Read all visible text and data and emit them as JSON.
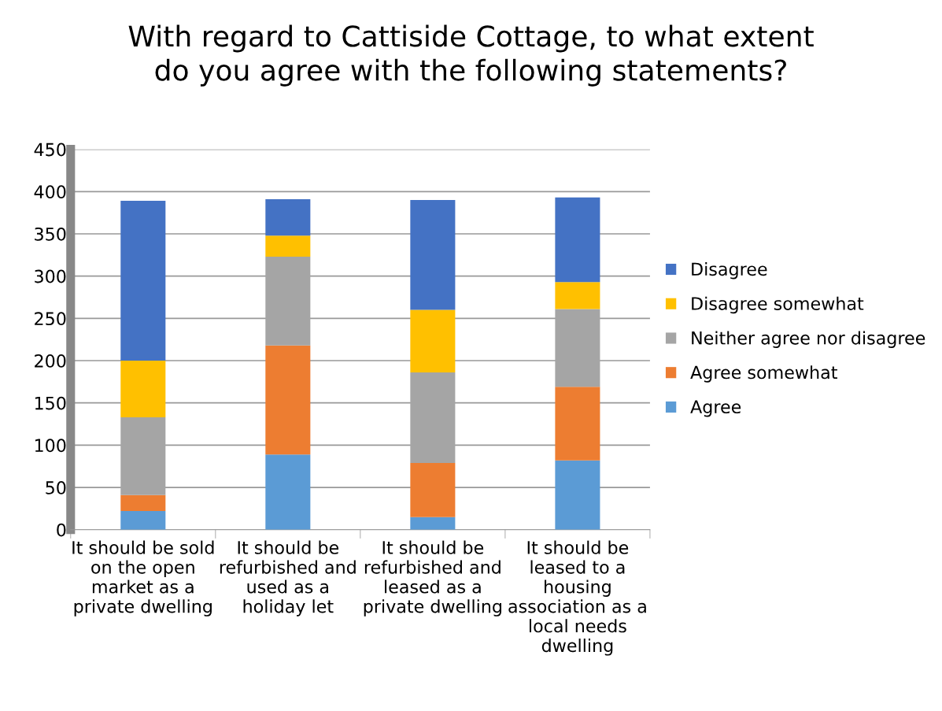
{
  "chart_data": {
    "type": "bar",
    "title": "With regard to Cattiside Cottage, to what extent\ndo you agree with the following statements?",
    "categories": [
      "It should be sold\non the open\nmarket as a\nprivate dwelling",
      "It should be\nrefurbished and\nused as a\nholiday let",
      "It should be\nrefurbished and\nleased as a\nprivate dwelling",
      "It should be\nleased to a\nhousing\nassociation as a\nlocal needs\ndwelling"
    ],
    "stacked": true,
    "series": [
      {
        "name": "Agree",
        "color": "#5b9bd5",
        "values": [
          22,
          89,
          15,
          82
        ]
      },
      {
        "name": "Agree somewhat",
        "color": "#ed7d31",
        "values": [
          19,
          129,
          64,
          87
        ]
      },
      {
        "name": "Neither agree nor disagree",
        "color": "#a5a5a5",
        "values": [
          92,
          105,
          107,
          92
        ]
      },
      {
        "name": "Disagree somewhat",
        "color": "#ffc000",
        "values": [
          67,
          25,
          74,
          32
        ]
      },
      {
        "name": "Disagree",
        "color": "#4472c4",
        "values": [
          189,
          43,
          130,
          100
        ]
      }
    ],
    "ylim": [
      0,
      450
    ],
    "yticks": [
      0,
      50,
      100,
      150,
      200,
      250,
      300,
      350,
      400,
      450
    ],
    "grid": "y",
    "legend": "right"
  }
}
